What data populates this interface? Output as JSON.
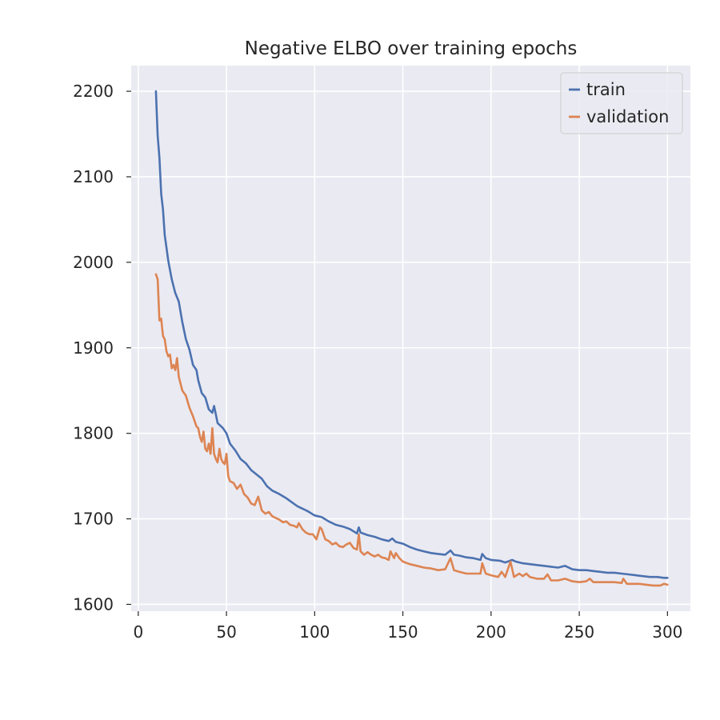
{
  "chart_data": {
    "type": "line",
    "title": "Negative ELBO over training epochs",
    "xlabel": "",
    "ylabel": "",
    "xlim": [
      -4,
      313
    ],
    "ylim": [
      1592,
      2230
    ],
    "x_ticks": [
      0,
      50,
      100,
      150,
      200,
      250,
      300
    ],
    "y_ticks": [
      1600,
      1700,
      1800,
      1900,
      2000,
      2100,
      2200
    ],
    "grid": true,
    "legend_position": "top-right",
    "colors": {
      "background": "#eaeaf2",
      "grid": "#ffffff",
      "train": "#4c72b0",
      "validation": "#dd8452"
    },
    "series": [
      {
        "name": "train",
        "color": "#4c72b0",
        "points": [
          [
            10,
            2200
          ],
          [
            11,
            2148
          ],
          [
            12,
            2122
          ],
          [
            13,
            2080
          ],
          [
            14,
            2062
          ],
          [
            15,
            2032
          ],
          [
            17,
            2002
          ],
          [
            19,
            1980
          ],
          [
            21,
            1964
          ],
          [
            23,
            1954
          ],
          [
            25,
            1930
          ],
          [
            27,
            1910
          ],
          [
            29,
            1898
          ],
          [
            31,
            1880
          ],
          [
            33,
            1874
          ],
          [
            34,
            1862
          ],
          [
            36,
            1847
          ],
          [
            38,
            1842
          ],
          [
            40,
            1828
          ],
          [
            42,
            1824
          ],
          [
            43,
            1832
          ],
          [
            45,
            1812
          ],
          [
            48,
            1806
          ],
          [
            50,
            1800
          ],
          [
            52,
            1788
          ],
          [
            55,
            1780
          ],
          [
            58,
            1770
          ],
          [
            61,
            1765
          ],
          [
            64,
            1757
          ],
          [
            67,
            1752
          ],
          [
            70,
            1747
          ],
          [
            73,
            1738
          ],
          [
            76,
            1733
          ],
          [
            80,
            1729
          ],
          [
            84,
            1724
          ],
          [
            88,
            1718
          ],
          [
            90,
            1715
          ],
          [
            92,
            1713
          ],
          [
            96,
            1709
          ],
          [
            100,
            1704
          ],
          [
            104,
            1702
          ],
          [
            108,
            1697
          ],
          [
            112,
            1693
          ],
          [
            116,
            1691
          ],
          [
            120,
            1688
          ],
          [
            124,
            1683
          ],
          [
            125,
            1690
          ],
          [
            126,
            1684
          ],
          [
            130,
            1681
          ],
          [
            134,
            1679
          ],
          [
            138,
            1676
          ],
          [
            142,
            1674
          ],
          [
            144,
            1677
          ],
          [
            146,
            1673
          ],
          [
            150,
            1671
          ],
          [
            154,
            1667
          ],
          [
            158,
            1664
          ],
          [
            162,
            1662
          ],
          [
            166,
            1660
          ],
          [
            170,
            1659
          ],
          [
            174,
            1658
          ],
          [
            177,
            1663
          ],
          [
            179,
            1658
          ],
          [
            182,
            1657
          ],
          [
            186,
            1655
          ],
          [
            190,
            1654
          ],
          [
            194,
            1652
          ],
          [
            195,
            1659
          ],
          [
            197,
            1654
          ],
          [
            200,
            1652
          ],
          [
            205,
            1651
          ],
          [
            208,
            1649
          ],
          [
            212,
            1652
          ],
          [
            214,
            1650
          ],
          [
            218,
            1648
          ],
          [
            222,
            1647
          ],
          [
            226,
            1646
          ],
          [
            230,
            1645
          ],
          [
            234,
            1644
          ],
          [
            238,
            1643
          ],
          [
            242,
            1645
          ],
          [
            246,
            1641
          ],
          [
            250,
            1640
          ],
          [
            254,
            1640
          ],
          [
            258,
            1639
          ],
          [
            262,
            1638
          ],
          [
            266,
            1637
          ],
          [
            270,
            1637
          ],
          [
            274,
            1636
          ],
          [
            278,
            1635
          ],
          [
            282,
            1634
          ],
          [
            286,
            1633
          ],
          [
            290,
            1632
          ],
          [
            294,
            1632
          ],
          [
            298,
            1631
          ],
          [
            300,
            1631
          ]
        ]
      },
      {
        "name": "validation",
        "color": "#dd8452",
        "points": [
          [
            10,
            1986
          ],
          [
            11,
            1980
          ],
          [
            12,
            1932
          ],
          [
            13,
            1934
          ],
          [
            14,
            1914
          ],
          [
            15,
            1910
          ],
          [
            16,
            1896
          ],
          [
            17,
            1890
          ],
          [
            18,
            1892
          ],
          [
            19,
            1876
          ],
          [
            20,
            1880
          ],
          [
            21,
            1874
          ],
          [
            22,
            1888
          ],
          [
            23,
            1866
          ],
          [
            25,
            1850
          ],
          [
            27,
            1844
          ],
          [
            29,
            1830
          ],
          [
            31,
            1820
          ],
          [
            33,
            1808
          ],
          [
            34,
            1806
          ],
          [
            35,
            1796
          ],
          [
            36,
            1790
          ],
          [
            37,
            1802
          ],
          [
            38,
            1782
          ],
          [
            39,
            1779
          ],
          [
            40,
            1788
          ],
          [
            41,
            1776
          ],
          [
            42,
            1806
          ],
          [
            43,
            1776
          ],
          [
            44,
            1770
          ],
          [
            45,
            1766
          ],
          [
            46,
            1782
          ],
          [
            47,
            1770
          ],
          [
            48,
            1766
          ],
          [
            49,
            1764
          ],
          [
            50,
            1776
          ],
          [
            51,
            1750
          ],
          [
            52,
            1744
          ],
          [
            54,
            1742
          ],
          [
            56,
            1735
          ],
          [
            58,
            1740
          ],
          [
            60,
            1729
          ],
          [
            62,
            1725
          ],
          [
            64,
            1718
          ],
          [
            66,
            1716
          ],
          [
            68,
            1726
          ],
          [
            70,
            1710
          ],
          [
            72,
            1706
          ],
          [
            74,
            1708
          ],
          [
            76,
            1703
          ],
          [
            78,
            1701
          ],
          [
            80,
            1699
          ],
          [
            82,
            1696
          ],
          [
            84,
            1697
          ],
          [
            86,
            1693
          ],
          [
            88,
            1692
          ],
          [
            90,
            1690
          ],
          [
            91,
            1695
          ],
          [
            93,
            1688
          ],
          [
            95,
            1684
          ],
          [
            97,
            1682
          ],
          [
            99,
            1682
          ],
          [
            101,
            1676
          ],
          [
            103,
            1690
          ],
          [
            104,
            1688
          ],
          [
            106,
            1676
          ],
          [
            108,
            1674
          ],
          [
            110,
            1670
          ],
          [
            112,
            1672
          ],
          [
            114,
            1668
          ],
          [
            116,
            1667
          ],
          [
            118,
            1670
          ],
          [
            120,
            1672
          ],
          [
            122,
            1666
          ],
          [
            124,
            1664
          ],
          [
            125,
            1682
          ],
          [
            126,
            1662
          ],
          [
            128,
            1658
          ],
          [
            130,
            1661
          ],
          [
            132,
            1658
          ],
          [
            134,
            1656
          ],
          [
            136,
            1658
          ],
          [
            138,
            1655
          ],
          [
            140,
            1654
          ],
          [
            142,
            1652
          ],
          [
            143,
            1662
          ],
          [
            145,
            1654
          ],
          [
            146,
            1660
          ],
          [
            148,
            1654
          ],
          [
            150,
            1650
          ],
          [
            154,
            1647
          ],
          [
            158,
            1645
          ],
          [
            162,
            1643
          ],
          [
            166,
            1642
          ],
          [
            170,
            1640
          ],
          [
            174,
            1641
          ],
          [
            177,
            1654
          ],
          [
            179,
            1640
          ],
          [
            182,
            1638
          ],
          [
            186,
            1636
          ],
          [
            190,
            1636
          ],
          [
            194,
            1636
          ],
          [
            195,
            1648
          ],
          [
            197,
            1636
          ],
          [
            200,
            1634
          ],
          [
            204,
            1632
          ],
          [
            206,
            1638
          ],
          [
            208,
            1632
          ],
          [
            211,
            1650
          ],
          [
            213,
            1632
          ],
          [
            216,
            1636
          ],
          [
            218,
            1633
          ],
          [
            220,
            1636
          ],
          [
            222,
            1632
          ],
          [
            226,
            1630
          ],
          [
            230,
            1630
          ],
          [
            232,
            1635
          ],
          [
            234,
            1628
          ],
          [
            238,
            1628
          ],
          [
            242,
            1630
          ],
          [
            246,
            1627
          ],
          [
            250,
            1626
          ],
          [
            254,
            1627
          ],
          [
            256,
            1630
          ],
          [
            258,
            1626
          ],
          [
            262,
            1626
          ],
          [
            266,
            1626
          ],
          [
            270,
            1626
          ],
          [
            274,
            1625
          ],
          [
            275,
            1630
          ],
          [
            277,
            1624
          ],
          [
            280,
            1624
          ],
          [
            284,
            1624
          ],
          [
            288,
            1623
          ],
          [
            292,
            1622
          ],
          [
            296,
            1622
          ],
          [
            298,
            1624
          ],
          [
            300,
            1623
          ]
        ]
      }
    ]
  }
}
